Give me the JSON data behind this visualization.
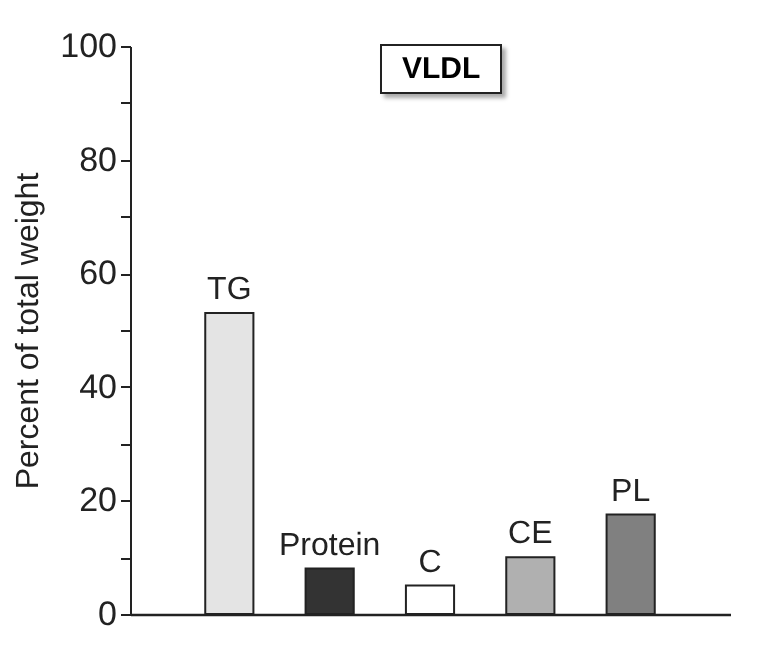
{
  "chart_data": {
    "type": "bar",
    "title": "VLDL",
    "ylabel": "Percent of total weight",
    "categories": [
      "TG",
      "Protein",
      "C",
      "CE",
      "PL"
    ],
    "values": [
      53,
      8,
      5,
      10,
      17.5
    ],
    "colors": [
      "#e4e4e4",
      "#333333",
      "#ffffff",
      "#b0b0b0",
      "#808080"
    ],
    "ylim": [
      0,
      100
    ],
    "yticks": [
      0,
      {
        "value": 10,
        "label": null
      },
      20,
      {
        "value": 30,
        "label": null
      },
      40,
      {
        "value": 50,
        "label": null
      },
      60,
      {
        "value": 70,
        "label": null
      },
      80,
      {
        "value": 90,
        "label": null
      },
      100
    ],
    "tick_labels": "y"
  }
}
